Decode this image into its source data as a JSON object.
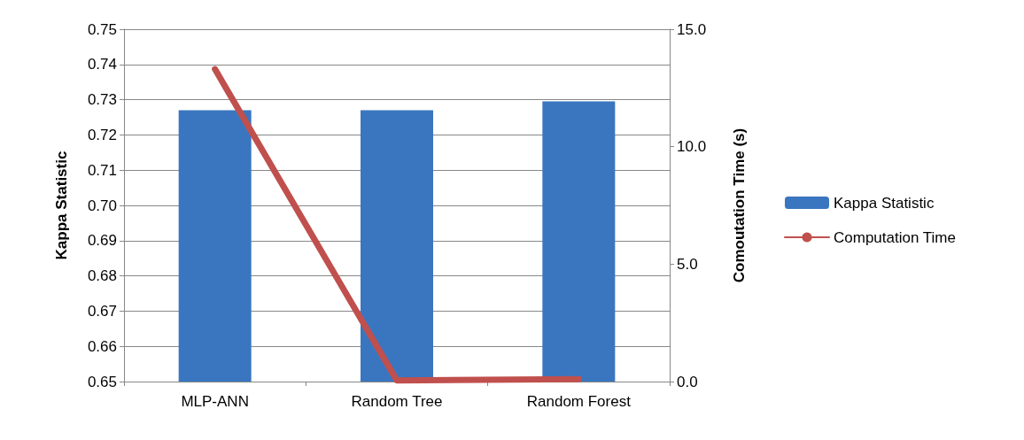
{
  "chart_data": {
    "type": "bar",
    "categories": [
      "MLP-ANN",
      "Random Tree",
      "Random Forest"
    ],
    "ylabel": "Kappa Statistic",
    "y2label": "Comoutation Time (s)",
    "series": [
      {
        "name": "Kappa Statistic",
        "color": "#3a76c0",
        "values": [
          0.727,
          0.727,
          0.7295
        ]
      },
      {
        "name": "Computation Time",
        "type": "line",
        "axis": "y2",
        "color": "#c0504d",
        "values": [
          13.3,
          0.05,
          0.1
        ]
      }
    ],
    "ylim": [
      0.65,
      0.75
    ],
    "yticks": [
      {
        "value": 0.65,
        "label": "0.65"
      },
      {
        "value": 0.66,
        "label": "0.66"
      },
      {
        "value": 0.67,
        "label": "0.67"
      },
      {
        "value": 0.68,
        "label": "0.68"
      },
      {
        "value": 0.69,
        "label": "0.69"
      },
      {
        "value": 0.7,
        "label": "0.70"
      },
      {
        "value": 0.71,
        "label": "0.71"
      },
      {
        "value": 0.72,
        "label": "0.72"
      },
      {
        "value": 0.73,
        "label": "0.73"
      },
      {
        "value": 0.74,
        "label": "0.74"
      },
      {
        "value": 0.75,
        "label": "0.75"
      }
    ],
    "y2lim": [
      0,
      15
    ],
    "y2ticks": [
      {
        "value": 0,
        "label": "0.0"
      },
      {
        "value": 5,
        "label": "5.0"
      },
      {
        "value": 10,
        "label": "10.0"
      },
      {
        "value": 15,
        "label": "15.0"
      }
    ],
    "grid": "y",
    "legend": "right",
    "marker": "none",
    "line_style": "solid"
  }
}
